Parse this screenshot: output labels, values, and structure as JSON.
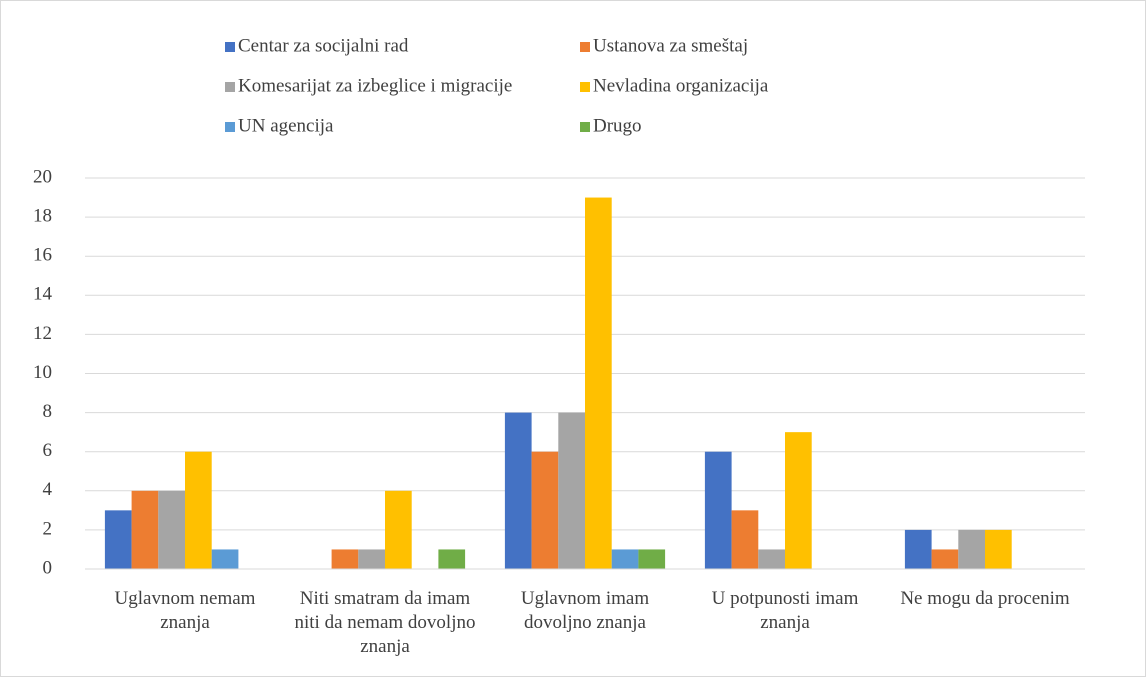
{
  "chart_data": {
    "type": "bar",
    "categories": [
      "Uglavnom nemam znanja",
      "Niti smatram da imam niti da nemam dovoljno znanja",
      "Uglavnom imam dovoljno znanja",
      "U potpunosti imam znanja",
      "Ne mogu da procenim"
    ],
    "series": [
      {
        "name": "Centar za socijalni rad",
        "color": "#4472c4",
        "values": [
          3,
          0,
          8,
          6,
          2
        ]
      },
      {
        "name": "Ustanova za smeštaj",
        "color": "#ed7d31",
        "values": [
          4,
          1,
          6,
          3,
          1
        ]
      },
      {
        "name": "Komesarijat za izbeglice i migracije",
        "color": "#a5a5a5",
        "values": [
          4,
          1,
          8,
          1,
          2
        ]
      },
      {
        "name": "Nevladina organizacija",
        "color": "#ffc000",
        "values": [
          6,
          4,
          19,
          7,
          2
        ]
      },
      {
        "name": "UN agencija",
        "color": "#5b9bd5",
        "values": [
          1,
          0,
          1,
          0,
          0
        ]
      },
      {
        "name": "Drugo",
        "color": "#70ad47",
        "values": [
          0,
          1,
          1,
          0,
          0
        ]
      }
    ],
    "ylim": [
      0,
      20
    ],
    "yticks": [
      0,
      2,
      4,
      6,
      8,
      10,
      12,
      14,
      16,
      18,
      20
    ],
    "grid": true,
    "legend": "top"
  }
}
